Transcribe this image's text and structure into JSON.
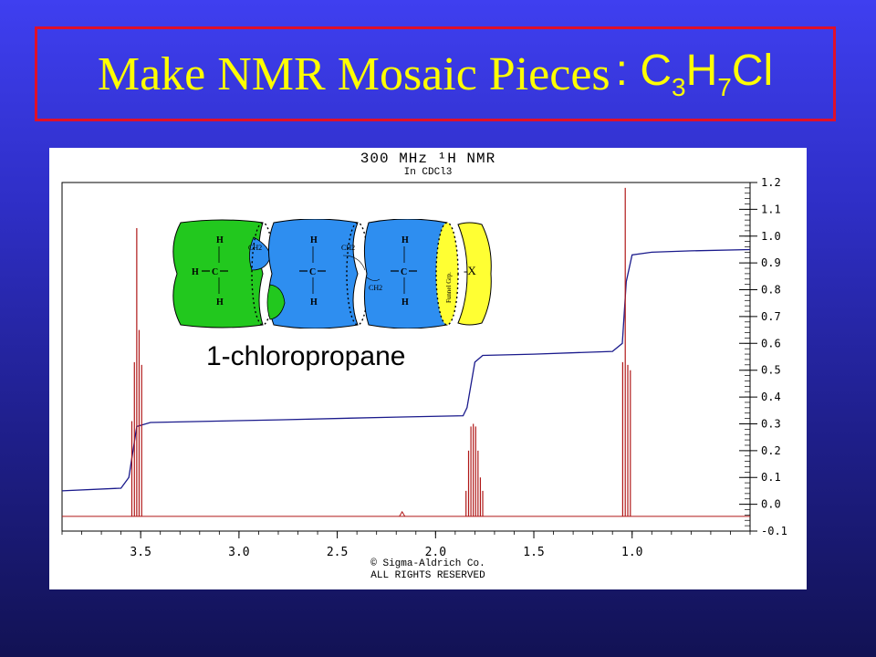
{
  "slide": {
    "title_text": "Make NMR Mosaic Pieces",
    "title_formula_prefix": ": C",
    "title_formula_sub1": "3",
    "title_formula_mid": "H",
    "title_formula_sub2": "7",
    "title_formula_suffix": "Cl",
    "compound_name": "1-chloropropane"
  },
  "spectrum": {
    "header": "300 MHz ¹H NMR",
    "solvent": "In CDCl3",
    "footer_copyright": "© Sigma-Aldrich Co.",
    "footer_rights": "ALL RIGHTS RESERVED"
  },
  "mosaic": {
    "h": "H",
    "c": "C",
    "ch3": "CH3",
    "ch2": "CH2",
    "funnel": "Funnel Grp.",
    "x_group": "-X",
    "colors": {
      "methyl": "#22c81e",
      "methylene": "#2e8ef0",
      "funnel": "#ffff33"
    }
  },
  "chart_data": {
    "type": "line",
    "title": "300 MHz ¹H NMR",
    "subtitle": "In CDCl3",
    "xlabel": "",
    "ylabel": "",
    "x_reversed": true,
    "xlim": [
      3.9,
      0.4
    ],
    "ylim": [
      -0.1,
      1.2
    ],
    "x_ticks": [
      3.5,
      3.0,
      2.5,
      2.0,
      1.5,
      1.0
    ],
    "x_tick_labels": [
      "3.5",
      "3.0",
      "2.5",
      "2.0",
      "1.5",
      "1.0"
    ],
    "y_ticks": [
      -0.1,
      0.0,
      0.1,
      0.2,
      0.3,
      0.4,
      0.5,
      0.6,
      0.7,
      0.8,
      0.9,
      1.0,
      1.1,
      1.2
    ],
    "y_tick_labels": [
      "-0.1",
      "0.0",
      "0.1",
      "0.2",
      "0.3",
      "0.4",
      "0.5",
      "0.6",
      "0.7",
      "0.8",
      "0.9",
      "1.0",
      "1.1",
      "1.2"
    ],
    "series": [
      {
        "color": "#b01818",
        "baseline": -0.045,
        "peaks": [
          {
            "ppm": 3.545,
            "height": 0.31
          },
          {
            "ppm": 3.532,
            "height": 0.53
          },
          {
            "ppm": 3.52,
            "height": 1.03
          },
          {
            "ppm": 3.508,
            "height": 0.65
          },
          {
            "ppm": 3.495,
            "height": 0.52
          },
          {
            "ppm": 1.845,
            "height": 0.05
          },
          {
            "ppm": 1.832,
            "height": 0.2
          },
          {
            "ppm": 1.82,
            "height": 0.29
          },
          {
            "ppm": 1.808,
            "height": 0.3
          },
          {
            "ppm": 1.796,
            "height": 0.29
          },
          {
            "ppm": 1.784,
            "height": 0.2
          },
          {
            "ppm": 1.772,
            "height": 0.1
          },
          {
            "ppm": 1.76,
            "height": 0.05
          },
          {
            "ppm": 2.17,
            "height": 0.0
          },
          {
            "ppm": 1.048,
            "height": 0.53
          },
          {
            "ppm": 1.035,
            "height": 1.18
          },
          {
            "ppm": 1.022,
            "height": 0.52
          },
          {
            "ppm": 1.009,
            "height": 0.5
          }
        ]
      },
      {
        "color": "#1a1a8c",
        "integral": [
          {
            "x": 3.9,
            "y": 0.05
          },
          {
            "x": 3.6,
            "y": 0.06
          },
          {
            "x": 3.56,
            "y": 0.1
          },
          {
            "x": 3.52,
            "y": 0.29
          },
          {
            "x": 3.45,
            "y": 0.305
          },
          {
            "x": 2.8,
            "y": 0.315
          },
          {
            "x": 2.2,
            "y": 0.325
          },
          {
            "x": 1.86,
            "y": 0.33
          },
          {
            "x": 1.84,
            "y": 0.36
          },
          {
            "x": 1.8,
            "y": 0.53
          },
          {
            "x": 1.76,
            "y": 0.555
          },
          {
            "x": 1.5,
            "y": 0.56
          },
          {
            "x": 1.1,
            "y": 0.57
          },
          {
            "x": 1.05,
            "y": 0.6
          },
          {
            "x": 1.03,
            "y": 0.83
          },
          {
            "x": 1.0,
            "y": 0.93
          },
          {
            "x": 0.9,
            "y": 0.94
          },
          {
            "x": 0.7,
            "y": 0.945
          },
          {
            "x": 0.4,
            "y": 0.95
          }
        ]
      }
    ]
  }
}
